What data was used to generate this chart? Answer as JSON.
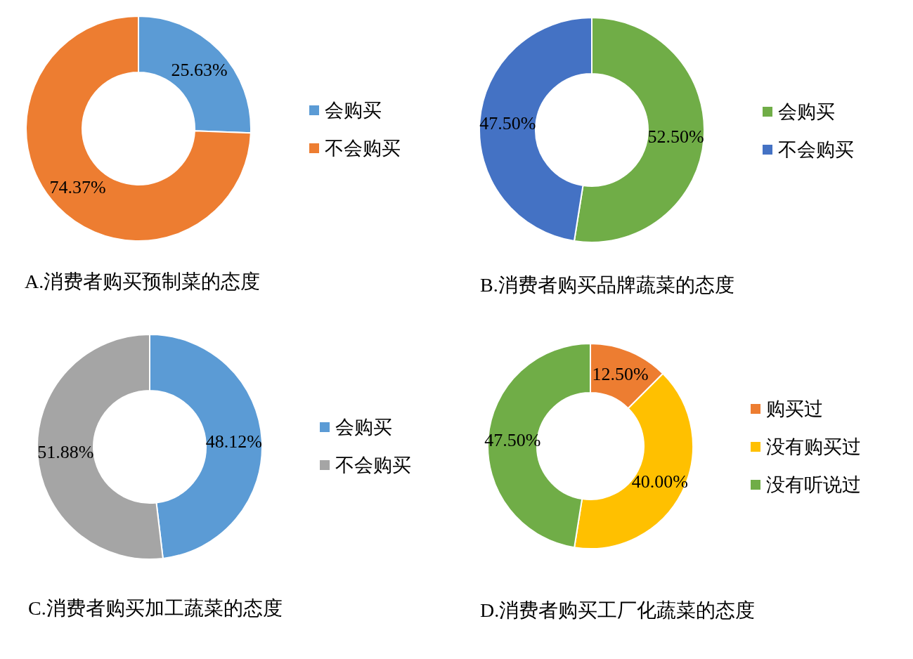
{
  "chart_data": [
    {
      "type": "donut",
      "title": "A.消费者购买预制菜的态度",
      "categories": [
        "会购买",
        "不会购买"
      ],
      "values": [
        25.63,
        74.37
      ],
      "colors": [
        "#5b9bd5",
        "#ed7d31"
      ],
      "value_labels": [
        "25.63%",
        "74.37%"
      ],
      "legend": "right"
    },
    {
      "type": "donut",
      "title": "B.消费者购买品牌蔬菜的态度",
      "categories": [
        "会购买",
        "不会购买"
      ],
      "values": [
        52.5,
        47.5
      ],
      "colors": [
        "#70ad47",
        "#4472c4"
      ],
      "value_labels": [
        "52.50%",
        "47.50%"
      ],
      "legend": "right"
    },
    {
      "type": "donut",
      "title": "C.消费者购买加工蔬菜的态度",
      "categories": [
        "会购买",
        "不会购买"
      ],
      "values": [
        48.12,
        51.88
      ],
      "colors": [
        "#5b9bd5",
        "#a5a5a5"
      ],
      "value_labels": [
        "48.12%",
        "51.88%"
      ],
      "legend": "right"
    },
    {
      "type": "donut",
      "title": "D.消费者购买工厂化蔬菜的态度",
      "categories": [
        "购买过",
        "没有购买过",
        "没有听说过"
      ],
      "values": [
        12.5,
        40.0,
        47.5
      ],
      "colors": [
        "#ed7d31",
        "#ffc000",
        "#70ad47"
      ],
      "value_labels": [
        "12.50%",
        "40.00%",
        "47.50%"
      ],
      "legend": "right"
    }
  ]
}
